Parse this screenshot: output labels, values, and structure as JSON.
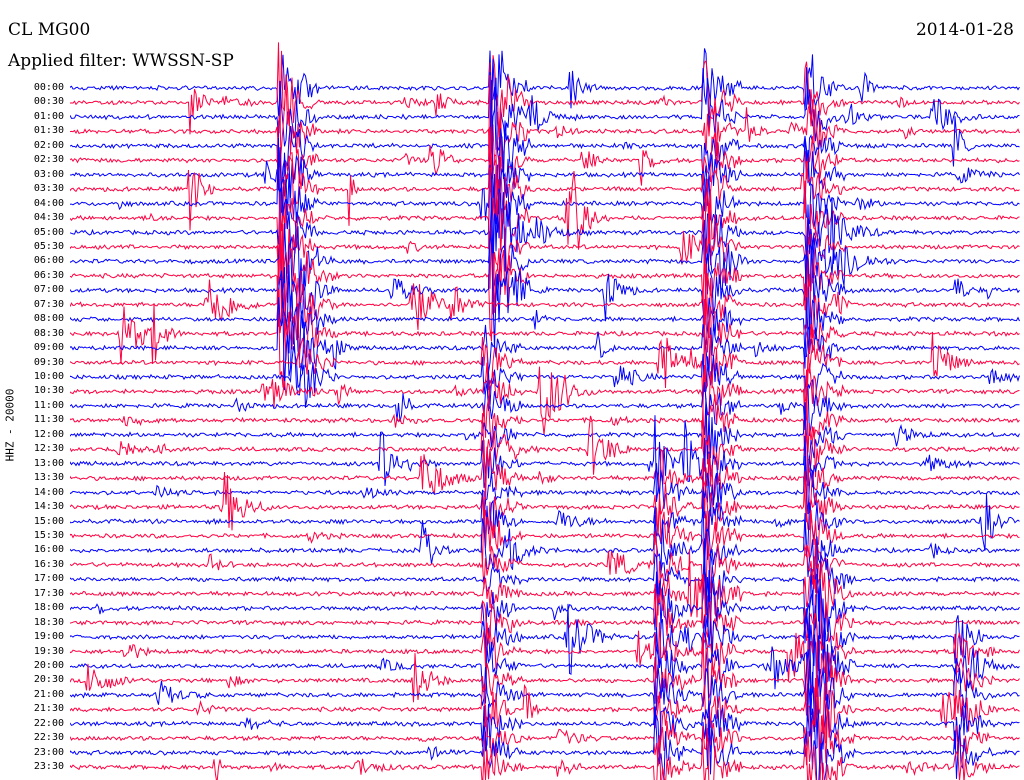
{
  "header": {
    "station": "CL MG00",
    "filter_label": "Applied filter: WWSSN-SP",
    "date": "2014-01-28"
  },
  "chart_data": {
    "type": "line",
    "title": "CL MG00",
    "subtitle": "Applied filter: WWSSN-SP",
    "date": "2014-01-28",
    "ylabel": "HHZ - 20000",
    "row_labels": [
      "00:00",
      "00:30",
      "01:00",
      "01:30",
      "02:00",
      "02:30",
      "03:00",
      "03:30",
      "04:00",
      "04:30",
      "05:00",
      "05:30",
      "06:00",
      "06:30",
      "07:00",
      "07:30",
      "08:00",
      "08:30",
      "09:00",
      "09:30",
      "10:00",
      "10:30",
      "11:00",
      "11:30",
      "12:00",
      "12:30",
      "13:00",
      "13:30",
      "14:00",
      "14:30",
      "15:00",
      "15:30",
      "16:00",
      "16:30",
      "17:00",
      "17:30",
      "18:00",
      "18:30",
      "19:00",
      "19:30",
      "20:00",
      "20:30",
      "21:00",
      "21:30",
      "22:00",
      "22:30",
      "23:00",
      "23:30"
    ],
    "colors": [
      "#0000ff",
      "#ff0040"
    ],
    "grid": false,
    "legend": "none"
  }
}
